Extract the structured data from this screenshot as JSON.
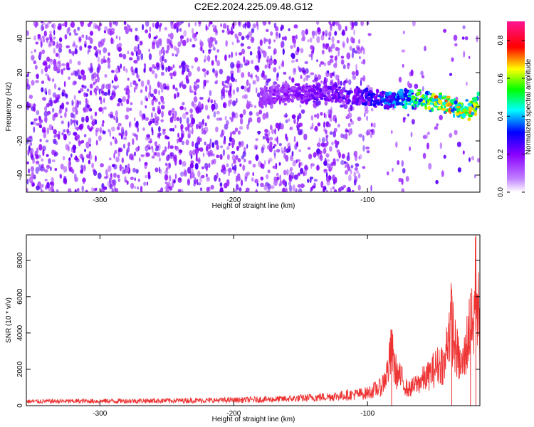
{
  "title": "C2E2.2024.225.09.48.G12",
  "chart_data": [
    {
      "type": "heatmap",
      "xlabel": "Height of straight line (km)",
      "ylabel": "Frequency (Hz)",
      "xlim": [
        -355,
        -16
      ],
      "ylim": [
        -50,
        50
      ],
      "xticks": [
        -300,
        -200,
        -100
      ],
      "yticks": [
        -40,
        -20,
        0,
        20,
        40
      ],
      "colorbar": {
        "label": "Normalized spectral amplitude",
        "range": [
          0.0,
          0.9
        ],
        "ticks": [
          0.0,
          0.2,
          0.4,
          0.6,
          0.8
        ],
        "colors": [
          "#ffffff",
          "#8a00ff",
          "#0000ff",
          "#00ffff",
          "#00ff00",
          "#ffff00",
          "#ff0000",
          "#ff1493"
        ]
      },
      "ridge": [
        {
          "x": -180,
          "f": 6,
          "a": 0.15
        },
        {
          "x": -150,
          "f": 8,
          "a": 0.2
        },
        {
          "x": -130,
          "f": 8,
          "a": 0.22
        },
        {
          "x": -110,
          "f": 6,
          "a": 0.25
        },
        {
          "x": -95,
          "f": 5,
          "a": 0.3
        },
        {
          "x": -85,
          "f": 4,
          "a": 0.35
        },
        {
          "x": -70,
          "f": 5,
          "a": 0.45
        },
        {
          "x": -55,
          "f": 4,
          "a": 0.6
        },
        {
          "x": -45,
          "f": 2,
          "a": 0.7
        },
        {
          "x": -35,
          "f": 0,
          "a": 0.6
        },
        {
          "x": -25,
          "f": -2,
          "a": 0.65
        },
        {
          "x": -17,
          "f": 2,
          "a": 0.55
        }
      ]
    },
    {
      "type": "line",
      "xlabel": "Height of straight line (km)",
      "ylabel": "SNR (10 * v/v)",
      "xlim": [
        -355,
        -16
      ],
      "ylim": [
        0,
        9400
      ],
      "xticks": [
        -300,
        -200,
        -100
      ],
      "yticks": [
        0,
        2000,
        4000,
        6000,
        8000
      ],
      "color": "#ee3333",
      "x": [
        -355,
        -300,
        -250,
        -200,
        -170,
        -150,
        -130,
        -120,
        -110,
        -100,
        -95,
        -90,
        -88,
        -85,
        -82,
        -80,
        -78,
        -75,
        -72,
        -70,
        -65,
        -60,
        -55,
        -50,
        -45,
        -42,
        -40,
        -37,
        -35,
        -32,
        -30,
        -27,
        -25,
        -23,
        -21,
        -20,
        -19,
        -18,
        -17,
        -16
      ],
      "y": [
        320,
        350,
        380,
        420,
        480,
        560,
        680,
        750,
        850,
        950,
        1200,
        1400,
        1800,
        2600,
        4200,
        3000,
        2400,
        2100,
        1600,
        1200,
        1500,
        1900,
        2200,
        2800,
        3300,
        3000,
        5600,
        6400,
        4600,
        3600,
        2800,
        3900,
        5200,
        6200,
        5600,
        7800,
        9400,
        8600,
        7000,
        3600
      ],
      "peaks": [
        {
          "x": -82,
          "y": 4200
        },
        {
          "x": -37,
          "y": 6400
        },
        {
          "x": -23,
          "y": 6200
        },
        {
          "x": -19,
          "y": 9400
        }
      ]
    }
  ]
}
